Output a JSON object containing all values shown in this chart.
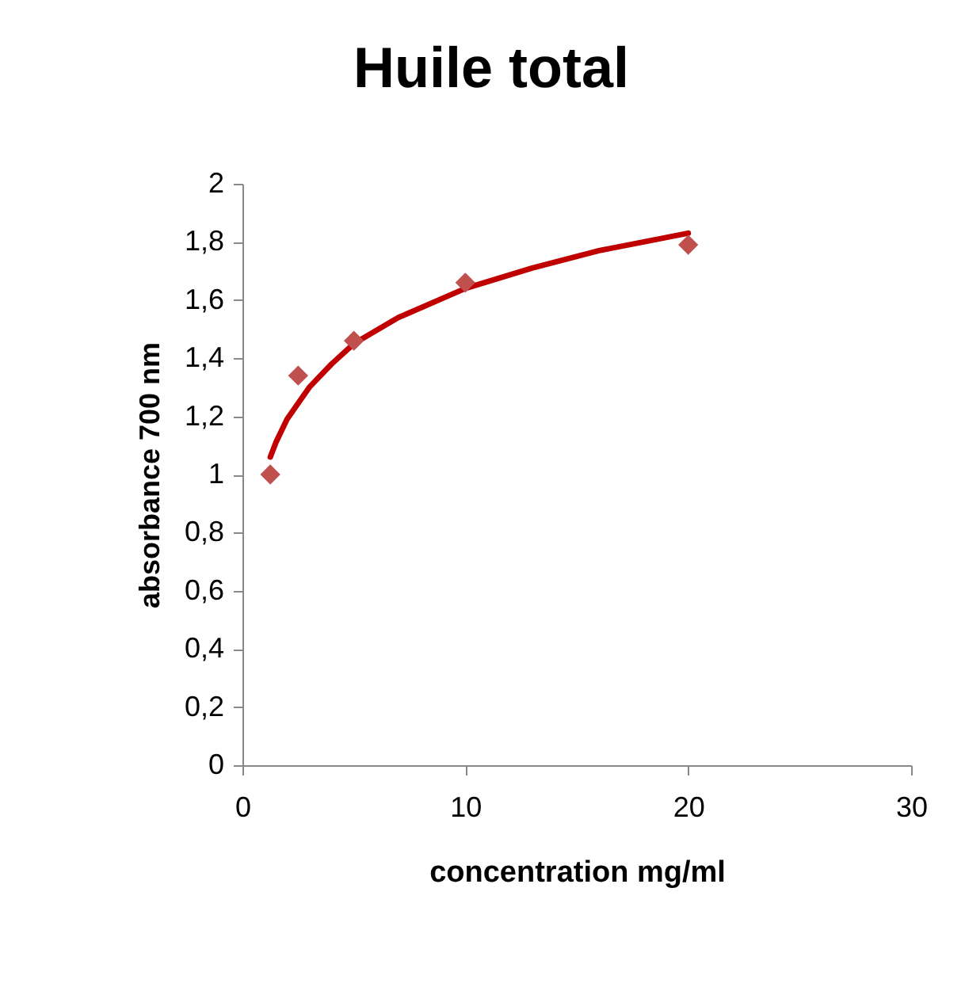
{
  "chart_data": {
    "type": "scatter",
    "title": "Huile total",
    "xlabel": "concentration mg/ml",
    "ylabel": "absorbance 700 nm",
    "x": [
      1.25,
      2.5,
      5,
      10,
      20
    ],
    "xlim": [
      0,
      30
    ],
    "xticks": [
      0,
      10,
      20,
      30
    ],
    "ylim": [
      0,
      2
    ],
    "yticks": [
      {
        "value": 0,
        "label": "0"
      },
      {
        "value": 0.2,
        "label": "0,2"
      },
      {
        "value": 0.4,
        "label": "0,4"
      },
      {
        "value": 0.6,
        "label": "0,6"
      },
      {
        "value": 0.8,
        "label": "0,8"
      },
      {
        "value": 1,
        "label": "1"
      },
      {
        "value": 1.2,
        "label": "1,2"
      },
      {
        "value": 1.4,
        "label": "1,4"
      },
      {
        "value": 1.6,
        "label": "1,6"
      },
      {
        "value": 1.8,
        "label": "1,8"
      },
      {
        "value": 2,
        "label": "2"
      }
    ],
    "grid": false,
    "series": [
      {
        "type": "line",
        "color": "#c00000",
        "line_style": "solid",
        "x": [
          1.25,
          1.5,
          2,
          3,
          4,
          5,
          7,
          10,
          13,
          16,
          20
        ],
        "values": [
          1.06,
          1.11,
          1.19,
          1.3,
          1.38,
          1.45,
          1.54,
          1.64,
          1.71,
          1.77,
          1.83
        ]
      },
      {
        "color": "#c0504d",
        "marker": "diamond",
        "values": [
          1.0,
          1.34,
          1.46,
          1.66,
          1.79
        ]
      }
    ]
  }
}
